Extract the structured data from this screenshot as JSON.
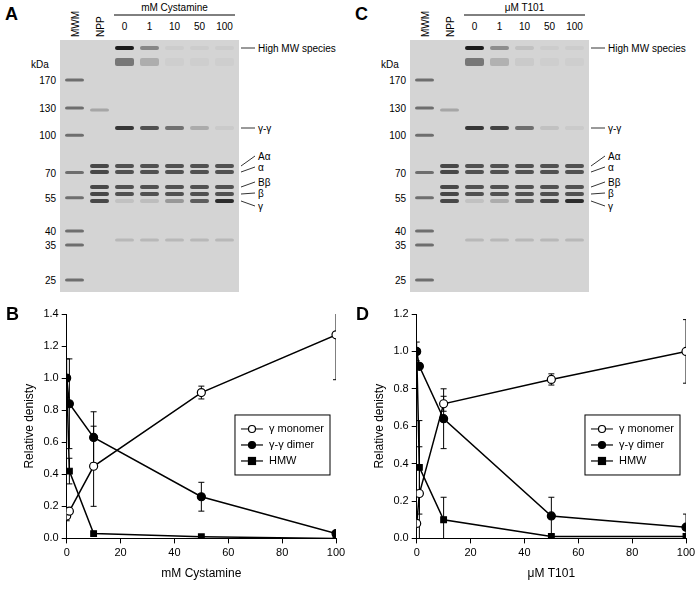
{
  "gels": [
    {
      "panel": "A",
      "lanes": [
        "MWM",
        "NPP"
      ],
      "treatment": "mM Cystamine",
      "concentrations": [
        "0",
        "1",
        "10",
        "50",
        "100"
      ],
      "axis_label": "kDa",
      "markers": [
        170,
        130,
        100,
        70,
        55,
        40,
        35,
        25
      ],
      "band_labels": [
        "High MW species",
        "γ-γ",
        "Aα",
        "α",
        "Bβ",
        "β",
        "γ"
      ]
    },
    {
      "panel": "C",
      "lanes": [
        "MWM",
        "NPP"
      ],
      "treatment": "μM T101",
      "concentrations": [
        "0",
        "1",
        "10",
        "50",
        "100"
      ],
      "axis_label": "kDa",
      "markers": [
        170,
        130,
        100,
        70,
        55,
        40,
        35,
        25
      ],
      "band_labels": [
        "High MW species",
        "γ-γ",
        "Aα",
        "α",
        "Bβ",
        "β",
        "γ"
      ]
    }
  ],
  "chart_data": [
    {
      "panel": "B",
      "type": "line",
      "x_label": "mM Cystamine",
      "y_label": "Relative denisty",
      "xlim": [
        0,
        100
      ],
      "xticks": [
        0,
        20,
        40,
        60,
        80,
        100
      ],
      "ylim": [
        0,
        1.4
      ],
      "yticks": [
        {
          "value": 0,
          "label": "0.0"
        },
        0.2,
        0.4,
        0.6,
        0.8,
        {
          "value": 1,
          "label": "1.0"
        },
        1.2,
        1.4
      ],
      "grid": false,
      "legend": "right",
      "x": [
        0,
        1,
        10,
        50,
        100
      ],
      "series": [
        {
          "name": "γ monomer",
          "color": "#000000",
          "marker": "circle-open",
          "values": [
            0.14,
            0.17,
            0.45,
            0.91,
            1.27
          ],
          "errors": [
            0.03,
            null,
            0.25,
            0.04,
            0.28
          ]
        },
        {
          "name": "γ-γ dimer",
          "color": "#000000",
          "marker": "circle",
          "values": [
            1.0,
            0.84,
            0.63,
            0.26,
            0.03
          ],
          "errors": [
            null,
            0.28,
            0.16,
            0.09,
            null
          ]
        },
        {
          "name": "HMW",
          "color": "#000000",
          "marker": "square",
          "values": [
            1.0,
            0.42,
            0.03,
            0.01,
            0.0
          ],
          "errors": [
            0.12,
            0.08,
            null,
            null,
            null
          ]
        }
      ]
    },
    {
      "panel": "D",
      "type": "line",
      "x_label": "μM T101",
      "y_label": "Relative denisty",
      "xlim": [
        0,
        100
      ],
      "xticks": [
        0,
        20,
        40,
        60,
        80,
        100
      ],
      "ylim": [
        0,
        1.2
      ],
      "yticks": [
        {
          "value": 0,
          "label": "0.0"
        },
        0.2,
        0.4,
        0.6,
        0.8,
        {
          "value": 1,
          "label": "1.0"
        },
        1.2
      ],
      "grid": false,
      "legend": "right",
      "x": [
        0,
        1,
        10,
        50,
        100
      ],
      "series": [
        {
          "name": "γ monomer",
          "color": "#000000",
          "marker": "circle-open",
          "values": [
            0.08,
            0.24,
            0.72,
            0.85,
            1.0
          ],
          "errors": [
            null,
            0.25,
            0.04,
            0.03,
            0.17
          ]
        },
        {
          "name": "γ-γ dimer",
          "color": "#000000",
          "marker": "circle",
          "values": [
            1.0,
            0.92,
            0.64,
            0.12,
            0.06
          ],
          "errors": [
            null,
            null,
            0.16,
            0.1,
            0.07
          ]
        },
        {
          "name": "HMW",
          "color": "#000000",
          "marker": "square",
          "values": [
            1.0,
            0.38,
            0.1,
            0.01,
            0.01
          ],
          "errors": [
            0.05,
            0.25,
            0.12,
            null,
            null
          ]
        }
      ]
    }
  ]
}
